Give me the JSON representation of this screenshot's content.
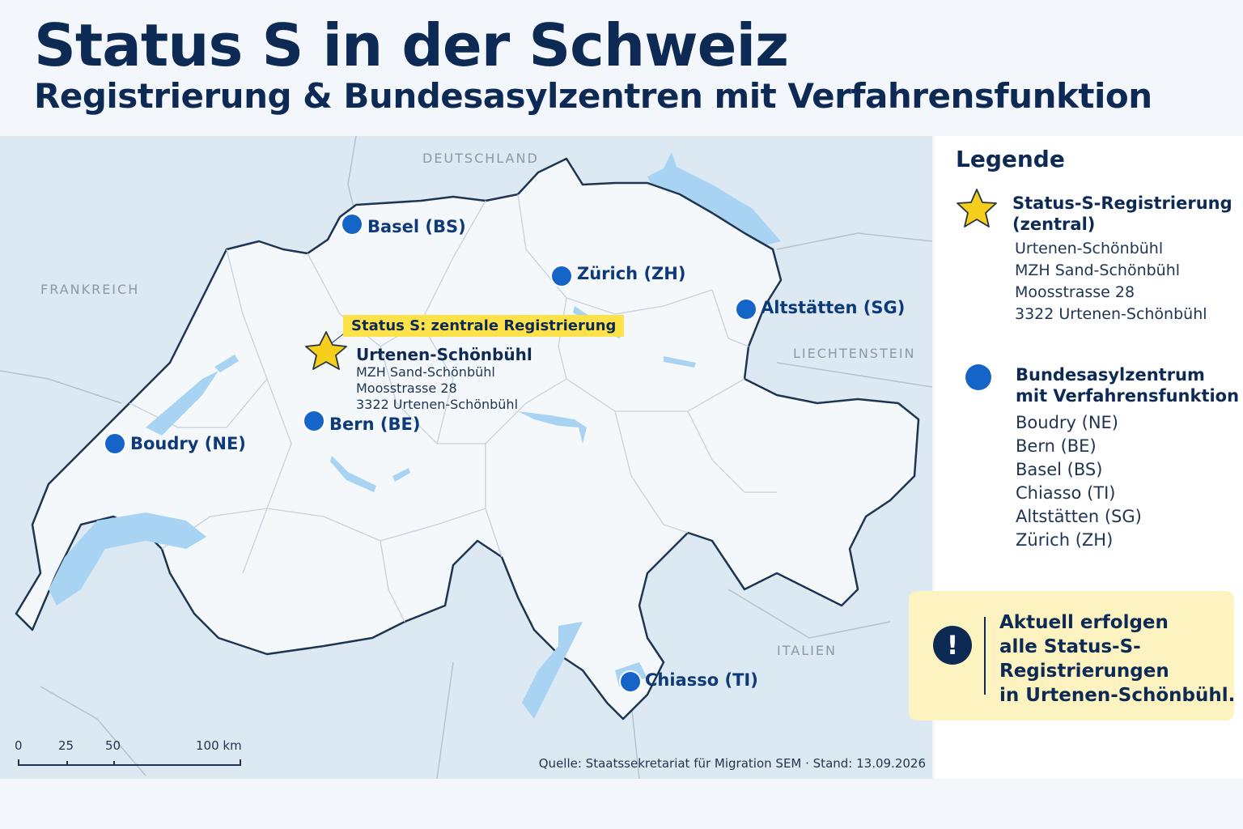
{
  "title": "Status S in der Schweiz",
  "subtitle": "Registrierung & Bundesasylzentren mit Verfahrensfunktion",
  "map": {
    "countries": {
      "deutschland": "DEUTSCHLAND",
      "frankreich": "FRANKREICH",
      "liechtenstein": "LIECHTENSTEIN",
      "italien": "ITALIEN"
    },
    "cities": {
      "basel": "Basel (BS)",
      "zuerich": "Zürich (ZH)",
      "altstaetten": "Altstätten (SG)",
      "bern": "Bern (BE)",
      "boudry": "Boudry (NE)",
      "chiasso": "Chiasso (TI)"
    },
    "callout": {
      "tag": "Status S: zentrale Registrierung",
      "place": "Urtenen-Schönbühl",
      "line1": "MZH Sand-Schönbühl",
      "line2": "Moosstrasse 28",
      "line3": "3322 Urtenen-Schönbühl"
    },
    "scale": {
      "t0": "0",
      "t25": "25",
      "t50": "50",
      "t100": "100 km"
    },
    "source": "Quelle: Staatssekretariat für Migration SEM  ·  Stand: 13.09.2026"
  },
  "legend": {
    "title": "Legende",
    "registration": {
      "heading_line1": "Status-S-Registrierung",
      "heading_line2": "(zentral)",
      "lines": [
        "Urtenen-Schönbühl",
        "MZH Sand-Schönbühl",
        "Moosstrasse 28",
        "3322 Urtenen-Schönbühl"
      ]
    },
    "centres": {
      "heading_line1": "Bundesasylzentrum",
      "heading_line2": "mit Verfahrensfunktion",
      "items": [
        "Boudry (NE)",
        "Bern (BE)",
        "Basel (BS)",
        "Chiasso (TI)",
        "Altstätten (SG)",
        "Zürich (ZH)"
      ]
    }
  },
  "note": {
    "icon": "exclamation-icon",
    "line1": "Aktuell erfolgen",
    "line2": "alle Status-S-",
    "line3": "Registrierungen",
    "line4": "in Urtenen-Schönbühl."
  },
  "colors": {
    "navy": "#0d2a55",
    "marker_blue": "#1565c8",
    "highlight_yellow": "#fde24a",
    "note_bg": "#fdf3c0",
    "water": "#a9d3f2"
  }
}
